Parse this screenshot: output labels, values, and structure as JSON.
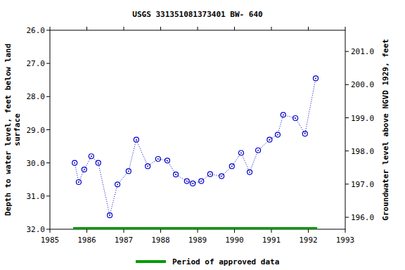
{
  "chart_data": {
    "type": "line",
    "title": "USGS 331351081373401 BW- 640",
    "y_label_lines": [
      "Depth to water level, feet below land",
      "surface"
    ],
    "y2_label": "Groundwater level above NGVD 1929, feet",
    "x": [
      1985.67,
      1985.78,
      1985.93,
      1986.12,
      1986.31,
      1986.62,
      1986.83,
      1987.13,
      1987.34,
      1987.65,
      1987.93,
      1988.18,
      1988.41,
      1988.71,
      1988.87,
      1989.1,
      1989.34,
      1989.65,
      1989.93,
      1990.18,
      1990.41,
      1990.64,
      1990.95,
      1991.17,
      1991.32,
      1991.65,
      1991.91,
      1992.2
    ],
    "series": [
      {
        "name": "BW- 640",
        "color": "#0000cc",
        "marker": "circle",
        "line_style": "dotted",
        "values": [
          30.0,
          30.58,
          30.2,
          29.8,
          30.0,
          31.58,
          30.65,
          30.25,
          29.3,
          30.1,
          29.88,
          29.93,
          30.35,
          30.55,
          30.62,
          30.55,
          30.34,
          30.4,
          30.1,
          29.7,
          30.28,
          29.62,
          29.3,
          29.15,
          28.55,
          28.65,
          29.12,
          27.45
        ]
      }
    ],
    "xlim": [
      1985,
      1993
    ],
    "xticks": [
      1985,
      1986,
      1987,
      1988,
      1989,
      1990,
      1991,
      1992,
      1993
    ],
    "ylim": [
      32,
      26
    ],
    "yticks": [
      {
        "value": 26,
        "label": "26.0"
      },
      {
        "value": 27,
        "label": "27.0"
      },
      {
        "value": 28,
        "label": "28.0"
      },
      {
        "value": 29,
        "label": "29.0"
      },
      {
        "value": 30,
        "label": "30.0"
      },
      {
        "value": 31,
        "label": "31.0"
      },
      {
        "value": 32,
        "label": "32.0"
      }
    ],
    "y2lim": [
      195.64,
      201.64
    ],
    "y2ticks": [
      {
        "value": 196,
        "label": "196.0"
      },
      {
        "value": 197,
        "label": "197.0"
      },
      {
        "value": 198,
        "label": "198.0"
      },
      {
        "value": 199,
        "label": "199.0"
      },
      {
        "value": 200,
        "label": "200.0"
      },
      {
        "value": 201,
        "label": "201.0"
      }
    ],
    "approved_period": {
      "name": "Period of approved data",
      "color": "#009900",
      "start": 1985.63,
      "end": 1992.24,
      "depth": 31.98
    },
    "grid": false,
    "legend": "bottom"
  }
}
